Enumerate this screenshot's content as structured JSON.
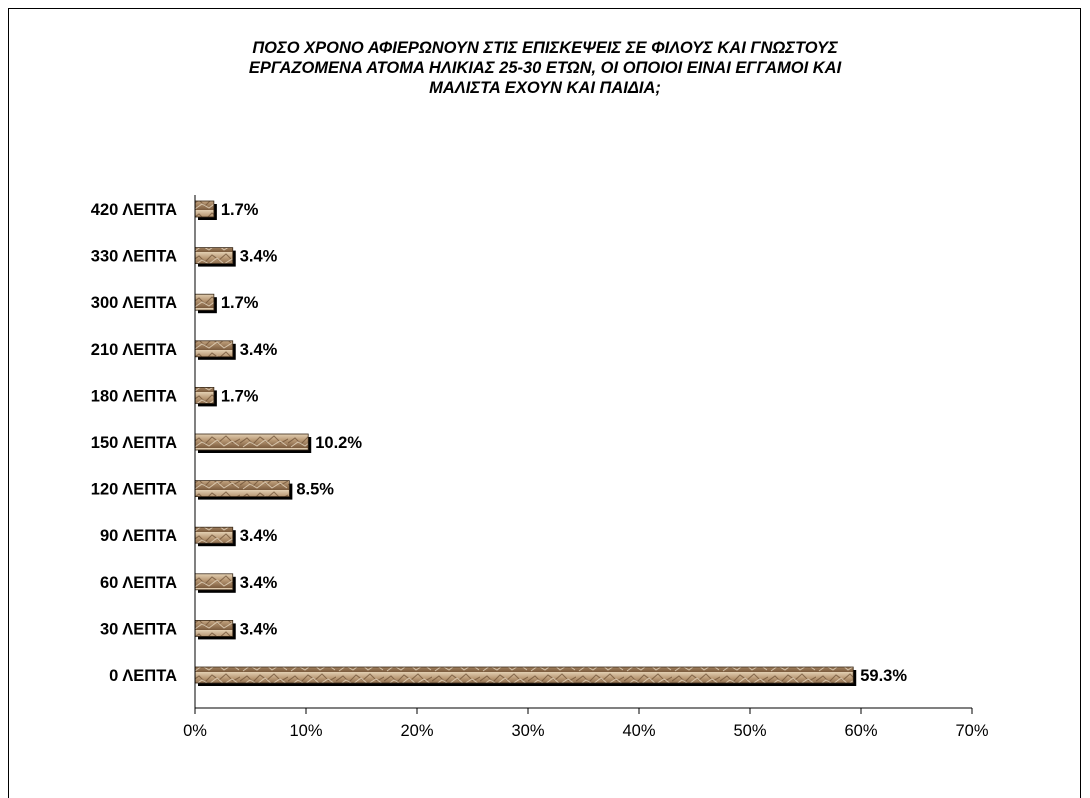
{
  "chart_data": {
    "type": "bar",
    "orientation": "horizontal",
    "title_lines": [
      "ΠΟΣΟ ΧΡΟΝΟ ΑΦΙΕΡΩΝΟΥΝ ΣΤΙΣ ΕΠΙΣΚΕΨΕΙΣ ΣΕ ΦΙΛΟΥΣ ΚΑΙ ΓΝΩΣΤΟΥΣ",
      "ΕΡΓΑΖΟΜΕΝΑ ΑΤΟΜΑ ΗΛΙΚΙΑΣ 25-30 ΕΤΩΝ, ΟΙ ΟΠΟΙΟΙ ΕΙΝΑΙ ΕΓΓΑΜΟΙ ΚΑΙ",
      "ΜΑΛΙΣΤΑ ΕΧΟΥΝ ΚΑΙ ΠΑΙΔΙΑ;"
    ],
    "categories": [
      "420 ΛΕΠΤΑ",
      "330 ΛΕΠΤΑ",
      "300 ΛΕΠΤΑ",
      "210 ΛΕΠΤΑ",
      "180 ΛΕΠΤΑ",
      "150 ΛΕΠΤΑ",
      "120 ΛΕΠΤΑ",
      "90 ΛΕΠΤΑ",
      "60 ΛΕΠΤΑ",
      "30 ΛΕΠΤΑ",
      "0 ΛΕΠΤΑ"
    ],
    "values": [
      1.7,
      3.4,
      1.7,
      3.4,
      1.7,
      10.2,
      8.5,
      3.4,
      3.4,
      3.4,
      59.3
    ],
    "value_labels": [
      "1.7%",
      "3.4%",
      "1.7%",
      "3.4%",
      "1.7%",
      "10.2%",
      "8.5%",
      "3.4%",
      "3.4%",
      "3.4%",
      "59.3%"
    ],
    "xlim": [
      0,
      70
    ],
    "x_ticks": [
      "0%",
      "10%",
      "20%",
      "30%",
      "40%",
      "50%",
      "60%",
      "70%"
    ],
    "grid": false,
    "legend": "none",
    "colors": {
      "bar_light": "#d8c3a5",
      "bar_dark": "#8a6a4a",
      "bar_edge": "#3a2a1a",
      "shadow": "#000000"
    }
  }
}
